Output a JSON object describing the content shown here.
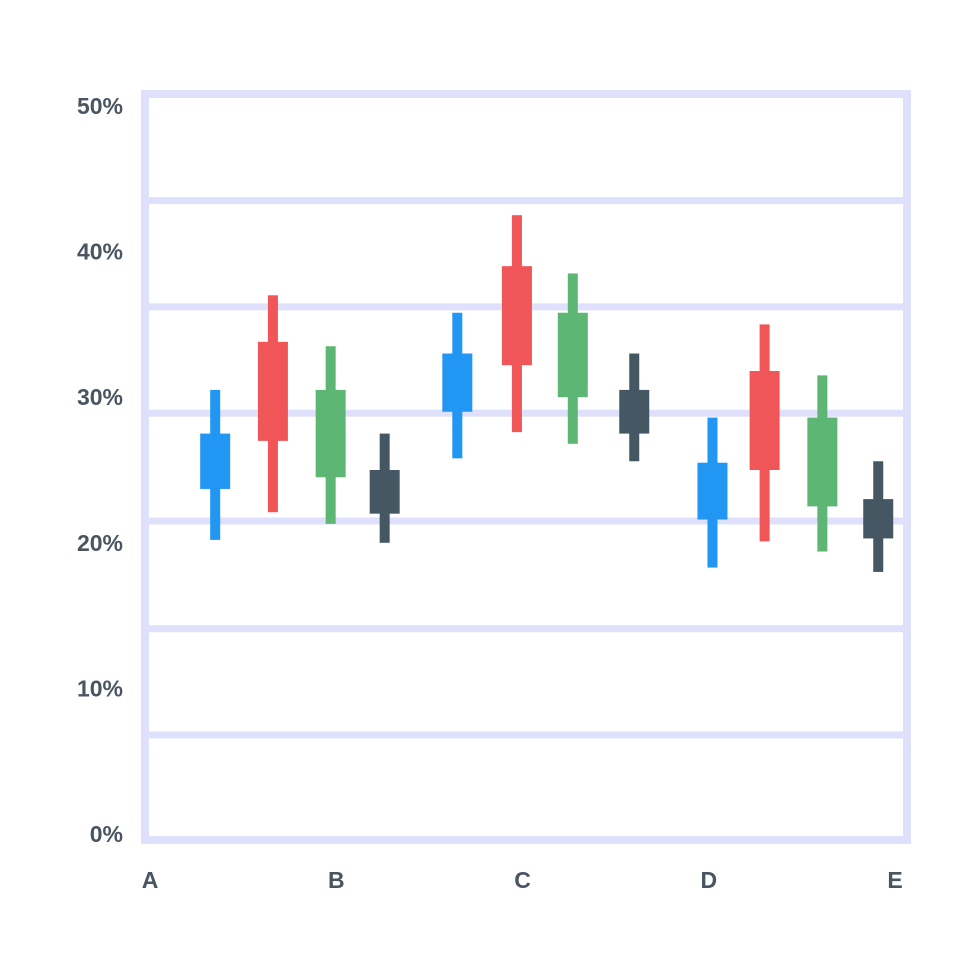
{
  "chart_data": {
    "type": "candlestick",
    "title": "",
    "xlabel": "",
    "ylabel": "",
    "ylim": [
      0,
      50
    ],
    "y_tick_labels": [
      "0%",
      "10%",
      "20%",
      "30%",
      "40%",
      "50%"
    ],
    "y_ticks": [
      0,
      10,
      20,
      30,
      40,
      50
    ],
    "x_tick_labels": [
      "A",
      "B",
      "C",
      "D",
      "E"
    ],
    "x_range": [
      0,
      4
    ],
    "horizontal_grid_values": [
      6.8,
      14.1,
      21.5,
      28.9,
      36.2,
      43.5
    ],
    "colors": {
      "frame": "#dfe0fb",
      "text": "#4a5562",
      "blue": "#2196f3",
      "red": "#f05658",
      "green": "#5db673",
      "dark": "#465764"
    },
    "candles": [
      {
        "x": 0.35,
        "color": "blue",
        "low": 20.2,
        "open": 23.7,
        "close": 27.5,
        "high": 30.5
      },
      {
        "x": 0.66,
        "color": "red",
        "low": 22.1,
        "open": 27.0,
        "close": 33.8,
        "high": 37.0
      },
      {
        "x": 0.97,
        "color": "green",
        "low": 21.3,
        "open": 24.5,
        "close": 30.5,
        "high": 33.5
      },
      {
        "x": 1.26,
        "color": "dark",
        "low": 20.0,
        "open": 22.0,
        "close": 25.0,
        "high": 27.5
      },
      {
        "x": 1.65,
        "color": "blue",
        "low": 25.8,
        "open": 29.0,
        "close": 33.0,
        "high": 35.8
      },
      {
        "x": 1.97,
        "color": "red",
        "low": 27.6,
        "open": 32.2,
        "close": 39.0,
        "high": 42.5
      },
      {
        "x": 2.27,
        "color": "green",
        "low": 26.8,
        "open": 30.0,
        "close": 35.8,
        "high": 38.5
      },
      {
        "x": 2.6,
        "color": "dark",
        "low": 25.6,
        "open": 27.5,
        "close": 30.5,
        "high": 33.0
      },
      {
        "x": 3.02,
        "color": "blue",
        "low": 18.3,
        "open": 21.6,
        "close": 25.5,
        "high": 28.6
      },
      {
        "x": 3.3,
        "color": "red",
        "low": 20.1,
        "open": 25.0,
        "close": 31.8,
        "high": 35.0
      },
      {
        "x": 3.61,
        "color": "green",
        "low": 19.4,
        "open": 22.5,
        "close": 28.6,
        "high": 31.5
      },
      {
        "x": 3.91,
        "color": "dark",
        "low": 18.0,
        "open": 20.3,
        "close": 23.0,
        "high": 25.6
      }
    ]
  }
}
